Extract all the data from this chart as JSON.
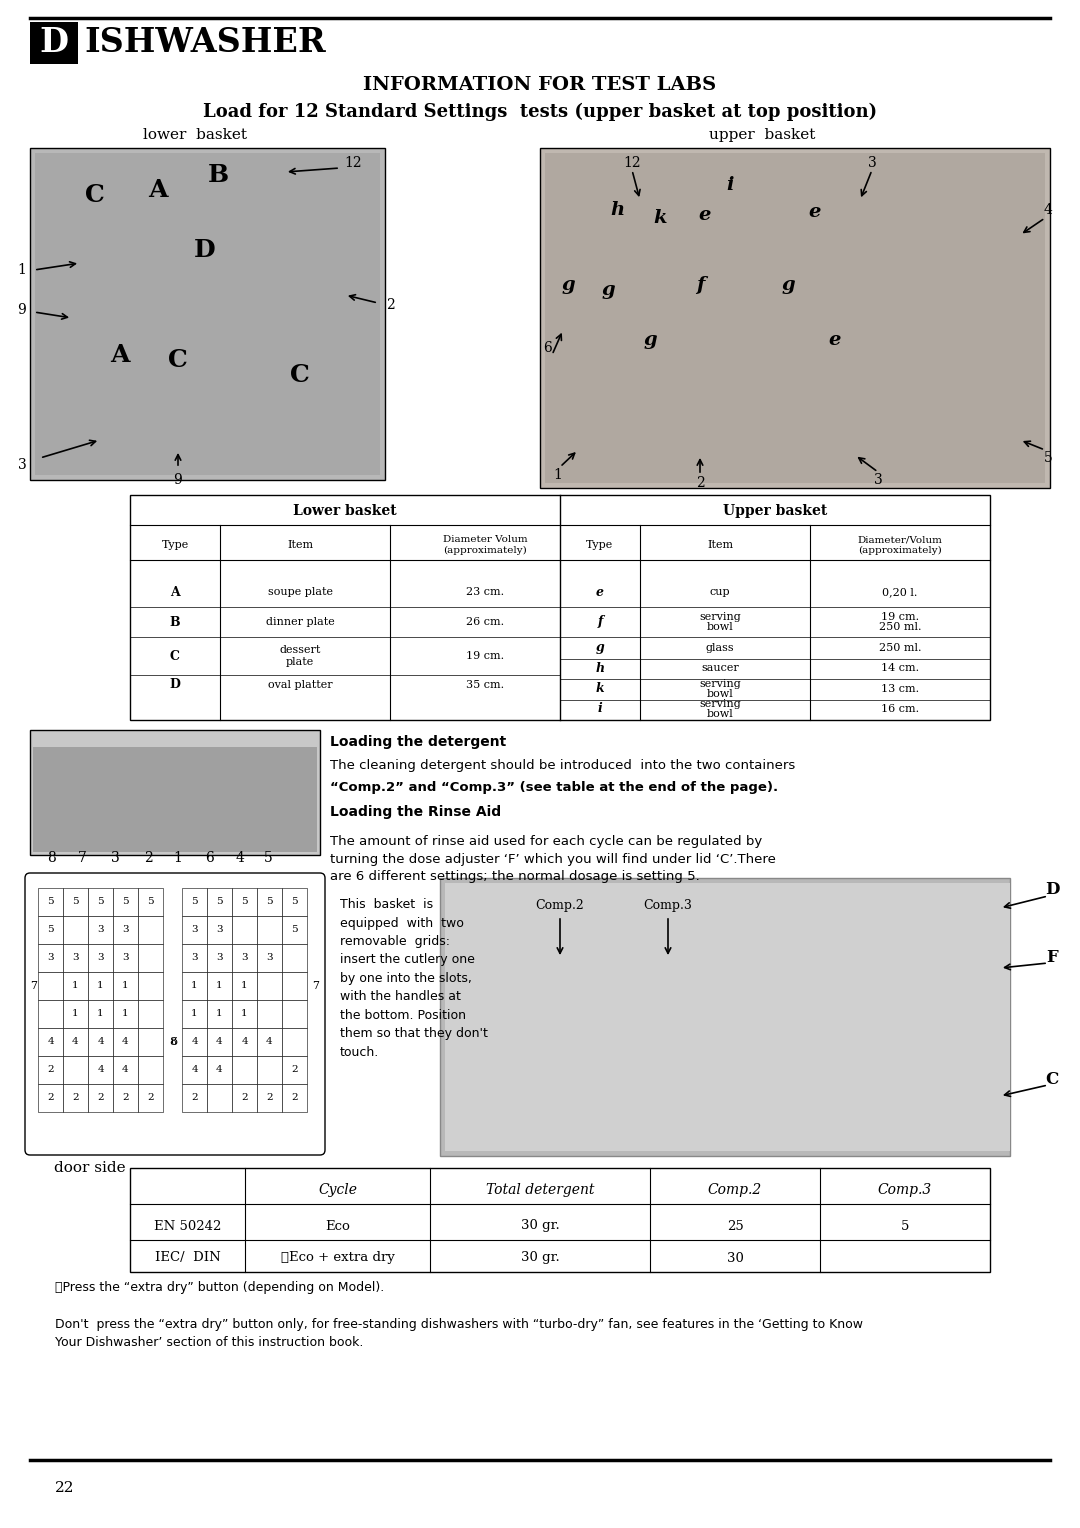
{
  "title_header_D": "D",
  "title_header_rest": "ISHWASHER",
  "title_main": "INFORMATION FOR TEST LABS",
  "subtitle": "Load for 12 Standard Settings  tests (upper basket at top position)",
  "lower_basket_label": "lower  basket",
  "upper_basket_label": "upper  basket",
  "table_lower_data": [
    [
      "A",
      "soupe plate",
      "23 cm."
    ],
    [
      "B",
      "dinner plate",
      "26 cm."
    ],
    [
      "C",
      "dessert\nplate",
      "19 cm."
    ],
    [
      "D",
      "oval platter",
      "35 cm."
    ]
  ],
  "table_upper_data": [
    [
      "e",
      "cup",
      "0,20 l."
    ],
    [
      "f",
      "serving\nbowl",
      "19 cm.\n250 ml."
    ],
    [
      "g",
      "glass",
      "250 ml."
    ],
    [
      "h",
      "saucer",
      "14 cm."
    ],
    [
      "k",
      "serving\nbowl",
      "13 cm."
    ],
    [
      "i",
      "serving\nbowl",
      "16 cm."
    ]
  ],
  "loading_detergent_title": "Loading the detergent",
  "loading_detergent_line1": "The cleaning detergent should be introduced  into the two containers",
  "loading_detergent_line2": "“Comp.2” and “Comp.3” (see table at the end of the page).",
  "loading_rinse_title": "Loading the Rinse Aid",
  "loading_rinse_text": "The amount of rinse aid used for each cycle can be regulated by\nturning the dose adjuster ‘F’ which you will find under lid ‘C’.There\nare 6 different settings; the normal dosage is setting 5.",
  "basket_text": "This  basket  is\nequipped  with  two\nremovable  grids:\ninsert the cutlery one\nby one into the slots,\nwith the handles at\nthe bottom. Position\nthem so that they don't\ntouch.",
  "door_side_label": "door side",
  "cutlery_numbers": [
    "8",
    "7",
    "3",
    "2",
    "1",
    "6",
    "4",
    "5"
  ],
  "comp2_label": "Comp.2",
  "comp3_label": "Comp.3",
  "D_label": "D",
  "F_label": "F",
  "C_label": "C",
  "bottom_table_col0": [
    "EN 50242",
    "IEC/  DIN"
  ],
  "bottom_table_cycle": [
    "Eco",
    "ⲫEco + extra dry"
  ],
  "bottom_table_total": [
    "30 gr.",
    "30 gr."
  ],
  "bottom_table_comp2": [
    "25",
    "30"
  ],
  "bottom_table_comp3": [
    "5",
    ""
  ],
  "footnote1": "ⲫPress the “extra dry” button (depending on Model).",
  "footnote2": "Don't  press the “extra dry” button only, for free-standing dishwashers with “turbo-dry” fan, see features in the ‘Getting to Know\nYour Dishwasher’ section of this instruction book.",
  "page_number": "22",
  "bg_color": "#ffffff"
}
